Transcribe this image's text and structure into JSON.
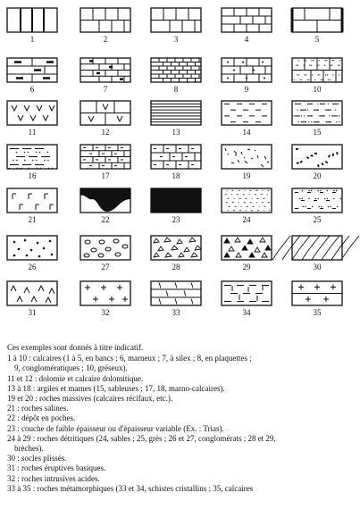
{
  "numbers": [
    "1",
    "2",
    "3",
    "4",
    "5",
    "6",
    "7",
    "8",
    "9",
    "10",
    "11",
    "12",
    "13",
    "14",
    "15",
    "16",
    "17",
    "18",
    "19",
    "20",
    "21",
    "22",
    "23",
    "24",
    "25",
    "26",
    "27",
    "28",
    "29",
    "30",
    "31",
    "32",
    "33",
    "34",
    "35"
  ],
  "legend": {
    "intro": "Ces exemples sont donnés à titre indicatif.",
    "lines": [
      "1 à 10 : calcaires (1 à 5, en bancs ; 6, marneux ; 7, à silex ; 8, en plaquettes ;",
      "9, conglomératiques ; 10, gréseux).",
      "11 et 12 : dolomie et calcaire dolomitique.",
      "13 à 18 : argiles et marnes (15, sableuses ; 17, 18, marno-calcaires).",
      "19 et 20 : roches massives (calcaires récifaux, etc.).",
      "21 : roches salines.",
      "22 : dépôt en poches.",
      "23 : couche de faible épaisseur ou d'épaisseur variable (Ex. : Trias).",
      "24 à 29 : roches détritiques (24, sables ; 25, grès ; 26 et 27, conglomérats ; 28 et 29,",
      "brèches).",
      "30 : socles plissés.",
      "31 : roches éruptives basiques.",
      "32 : roches intrusives acides.",
      "33 à 35 : roches métamorphiques (33 et 34, schistes cristallins ; 35, calcaires"
    ]
  }
}
